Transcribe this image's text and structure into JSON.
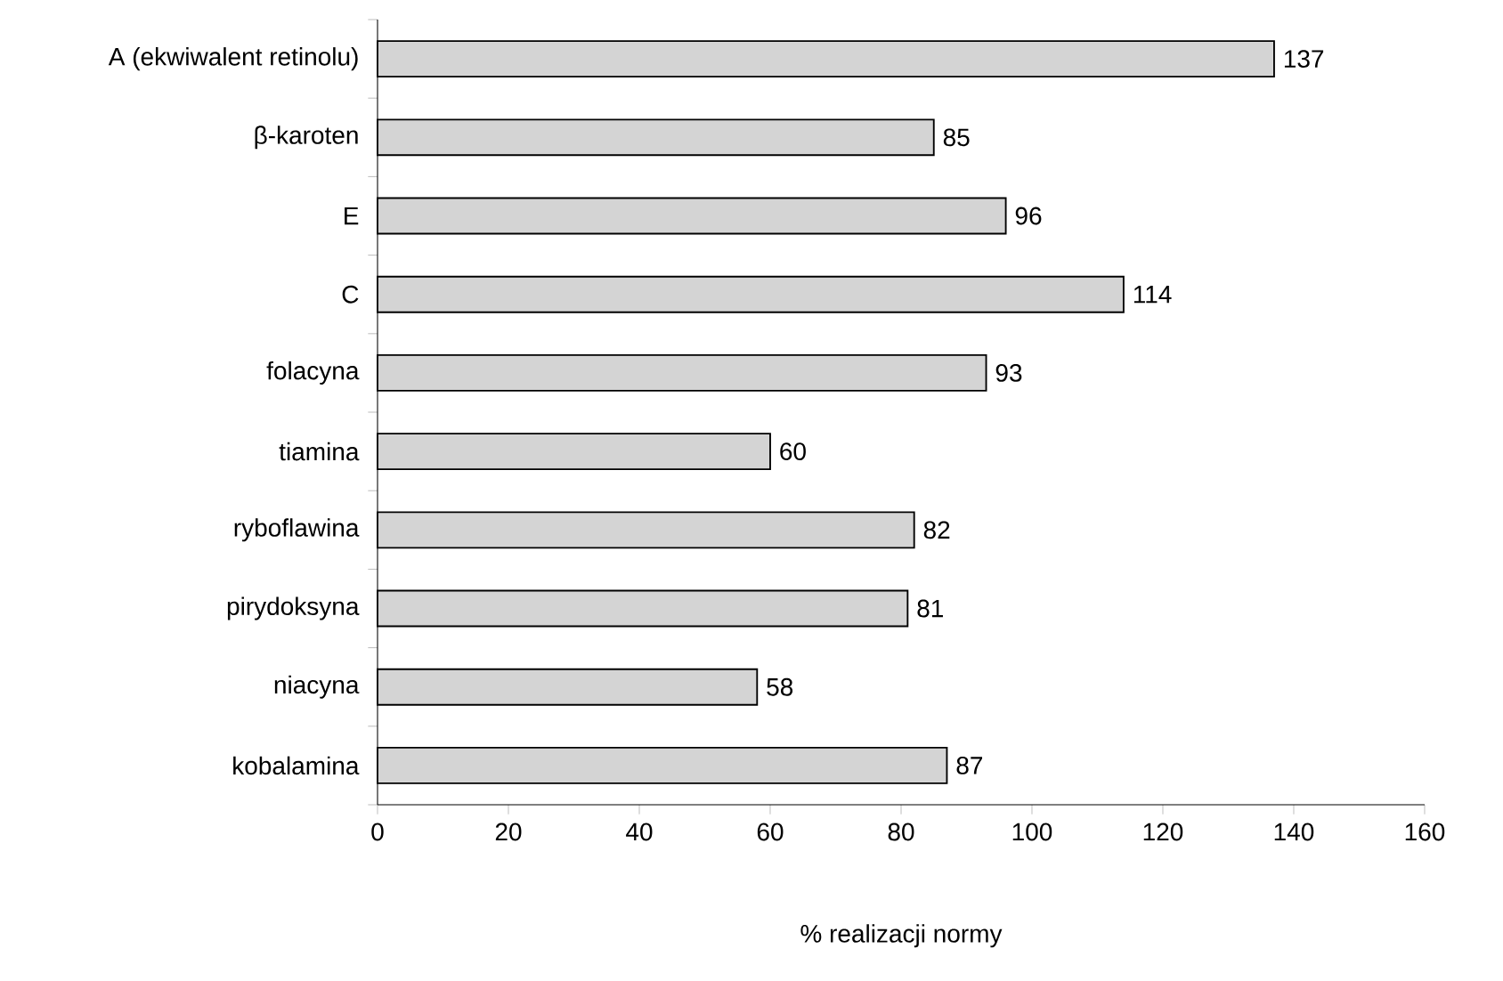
{
  "chart_data": {
    "type": "bar",
    "orientation": "horizontal",
    "xlabel": "% realizacji normy",
    "categories": [
      "A (ekwiwalent retinolu)",
      "β-karoten",
      "E",
      "C",
      "folacyna",
      "tiamina",
      "ryboflawina",
      "pirydoksyna",
      "niacyna",
      "kobalamina"
    ],
    "values": [
      137,
      85,
      96,
      114,
      93,
      60,
      82,
      81,
      58,
      87
    ],
    "color": "#d4d4d4",
    "data_labels": true,
    "grid": false,
    "xlim": [
      0,
      160
    ],
    "xticks": [
      0,
      20,
      40,
      60,
      80,
      100,
      120,
      140,
      160
    ]
  }
}
